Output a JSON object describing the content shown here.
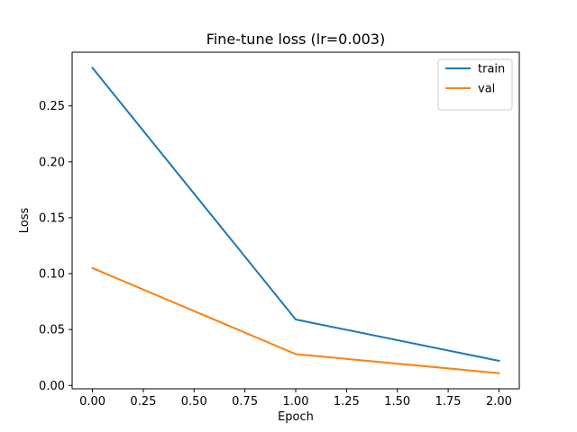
{
  "chart_data": {
    "type": "line",
    "title": "Fine-tune loss (lr=0.003)",
    "xlabel": "Epoch",
    "ylabel": "Loss",
    "xlim": [
      -0.1,
      2.1
    ],
    "ylim": [
      -0.003,
      0.298
    ],
    "xticks": [
      0.0,
      0.25,
      0.5,
      0.75,
      1.0,
      1.25,
      1.5,
      1.75,
      2.0
    ],
    "xtick_labels": [
      "0.00",
      "0.25",
      "0.50",
      "0.75",
      "1.00",
      "1.25",
      "1.50",
      "1.75",
      "2.00"
    ],
    "yticks": [
      0.0,
      0.05,
      0.1,
      0.15,
      0.2,
      0.25
    ],
    "ytick_labels": [
      "0.00",
      "0.05",
      "0.10",
      "0.15",
      "0.20",
      "0.25"
    ],
    "grid": false,
    "legend_position": "top-right",
    "series": [
      {
        "name": "train",
        "color": "#1f77b4",
        "x": [
          0,
          1,
          2
        ],
        "y": [
          0.284,
          0.059,
          0.022
        ]
      },
      {
        "name": "val",
        "color": "#ff7f0e",
        "x": [
          0,
          1,
          2
        ],
        "y": [
          0.105,
          0.028,
          0.011
        ]
      }
    ]
  }
}
